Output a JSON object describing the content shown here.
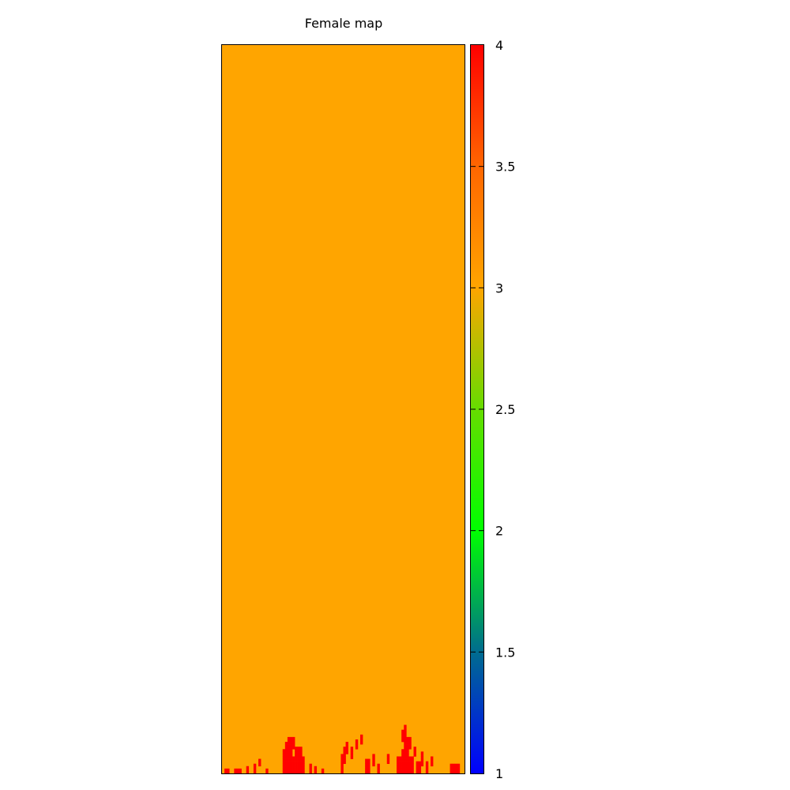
{
  "chart_data": {
    "type": "heatmap",
    "title": "Female map",
    "xlabel": "",
    "ylabel": "",
    "colorbar": {
      "min": 1,
      "max": 4,
      "ticks": [
        1,
        1.5,
        2,
        2.5,
        3,
        3.5,
        4
      ],
      "tick_labels": [
        "1",
        "1.5",
        "2",
        "2.5",
        "3",
        "3.5",
        "4"
      ],
      "palette_stops": [
        {
          "value": 1.0,
          "color": "#0000ff"
        },
        {
          "value": 1.5,
          "color": "#006c8f"
        },
        {
          "value": 2.0,
          "color": "#00ff00"
        },
        {
          "value": 2.5,
          "color": "#66dd00"
        },
        {
          "value": 3.0,
          "color": "#ffa500"
        },
        {
          "value": 3.5,
          "color": "#ff6600"
        },
        {
          "value": 4.0,
          "color": "#ff0000"
        }
      ]
    },
    "grid": {
      "columns": 100,
      "rows": 300,
      "background_value": 3,
      "background_color": "#ffa500",
      "highlight_value": 4,
      "highlight_color": "#ff0000"
    }
  }
}
